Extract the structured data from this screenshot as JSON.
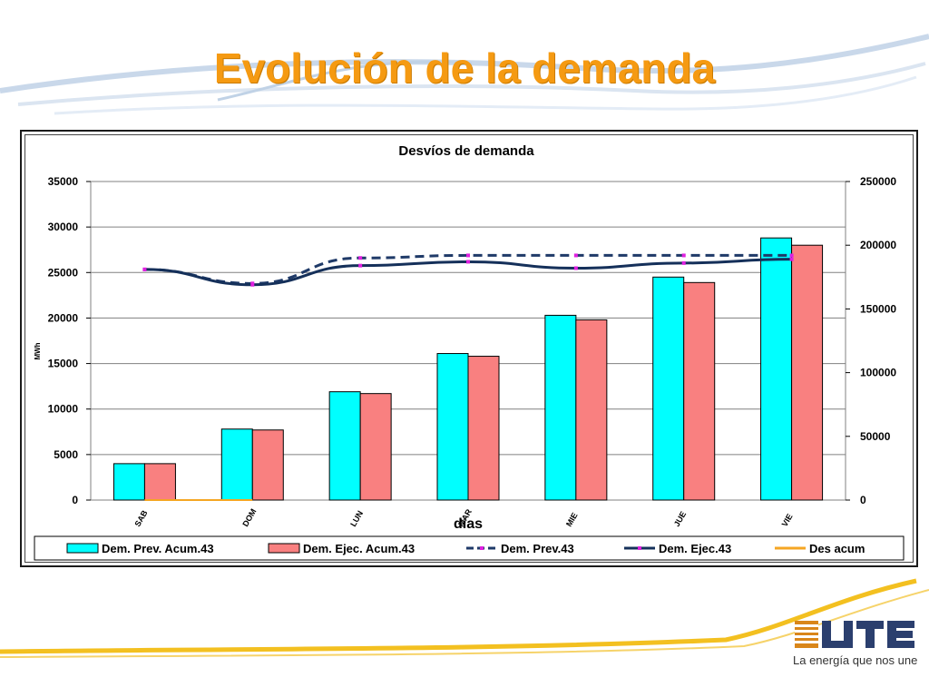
{
  "slide": {
    "title": "Evolución de la demanda",
    "tagline": "La energía que nos une",
    "logo_text": "UTE"
  },
  "colors": {
    "title": "#f59a12",
    "prev_bar": "#00ffff",
    "ejec_bar": "#f98080",
    "prev_line": "#1f3a68",
    "ejec_line": "#15305a",
    "marker": "#e020e0",
    "des_acum": "#f5a623",
    "swoosh_gold": "#f3c020",
    "swoosh_blue": "#b9cbe0"
  },
  "chart_data": {
    "type": "bar",
    "title": "Desvíos de demanda",
    "xlabel": "días",
    "ylabel": "MWh",
    "categories": [
      "SAB",
      "DOM",
      "LUN",
      "MAR",
      "MIE",
      "JUE",
      "VIE"
    ],
    "y_left": {
      "lim": [
        0,
        35000
      ],
      "ticks": [
        0,
        5000,
        10000,
        15000,
        20000,
        25000,
        30000,
        35000
      ]
    },
    "y_right": {
      "lim": [
        0,
        250000
      ],
      "ticks": [
        0,
        50000,
        100000,
        150000,
        200000,
        250000
      ]
    },
    "grid": true,
    "legend_position": "bottom",
    "bars": [
      {
        "name": "Dem. Prev. Acum.43",
        "axis": "left",
        "values": [
          4000,
          7800,
          11900,
          16100,
          20300,
          24500,
          28800
        ]
      },
      {
        "name": "Dem. Ejec. Acum.43",
        "axis": "left",
        "values": [
          4000,
          7700,
          11700,
          15800,
          19800,
          23900,
          28000
        ]
      }
    ],
    "lines": [
      {
        "name": "Dem. Prev.43",
        "axis": "right",
        "style": "dashed",
        "values": [
          181000,
          170000,
          190000,
          192000,
          192000,
          192000,
          192000
        ]
      },
      {
        "name": "Dem. Ejec.43",
        "axis": "right",
        "style": "solid",
        "values": [
          181000,
          169000,
          184000,
          187000,
          182000,
          186000,
          189000
        ]
      },
      {
        "name": "Des acum",
        "axis": "left",
        "style": "solid",
        "values": [
          0,
          0,
          null,
          null,
          null,
          null,
          null
        ]
      }
    ]
  }
}
